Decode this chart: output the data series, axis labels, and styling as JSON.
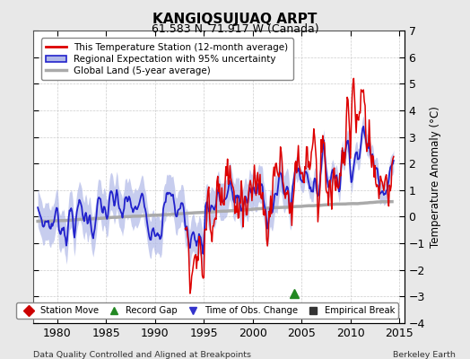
{
  "title": "KANGIQSUJUAQ ARPT",
  "subtitle": "61.583 N, 71.917 W (Canada)",
  "xlabel_left": "Data Quality Controlled and Aligned at Breakpoints",
  "xlabel_right": "Berkeley Earth",
  "ylabel": "Temperature Anomaly (°C)",
  "xlim": [
    1977.5,
    2015.5
  ],
  "ylim": [
    -4,
    7
  ],
  "yticks": [
    -4,
    -3,
    -2,
    -1,
    0,
    1,
    2,
    3,
    4,
    5,
    6,
    7
  ],
  "xticks": [
    1980,
    1985,
    1990,
    1995,
    2000,
    2005,
    2010,
    2015
  ],
  "station_color": "#dd0000",
  "regional_color": "#2222cc",
  "regional_fill_color": "#b0b8e8",
  "global_color": "#aaaaaa",
  "legend_labels": [
    "This Temperature Station (12-month average)",
    "Regional Expectation with 95% uncertainty",
    "Global Land (5-year average)"
  ],
  "marker_legend": [
    {
      "label": "Station Move",
      "color": "#cc0000",
      "marker": "D"
    },
    {
      "label": "Record Gap",
      "color": "#228822",
      "marker": "^"
    },
    {
      "label": "Time of Obs. Change",
      "color": "#3333cc",
      "marker": "v"
    },
    {
      "label": "Empirical Break",
      "color": "#333333",
      "marker": "s"
    }
  ],
  "record_gap_x": 2004.2,
  "record_gap_y": -2.9,
  "background_color": "#e8e8e8",
  "plot_bg_color": "#ffffff"
}
